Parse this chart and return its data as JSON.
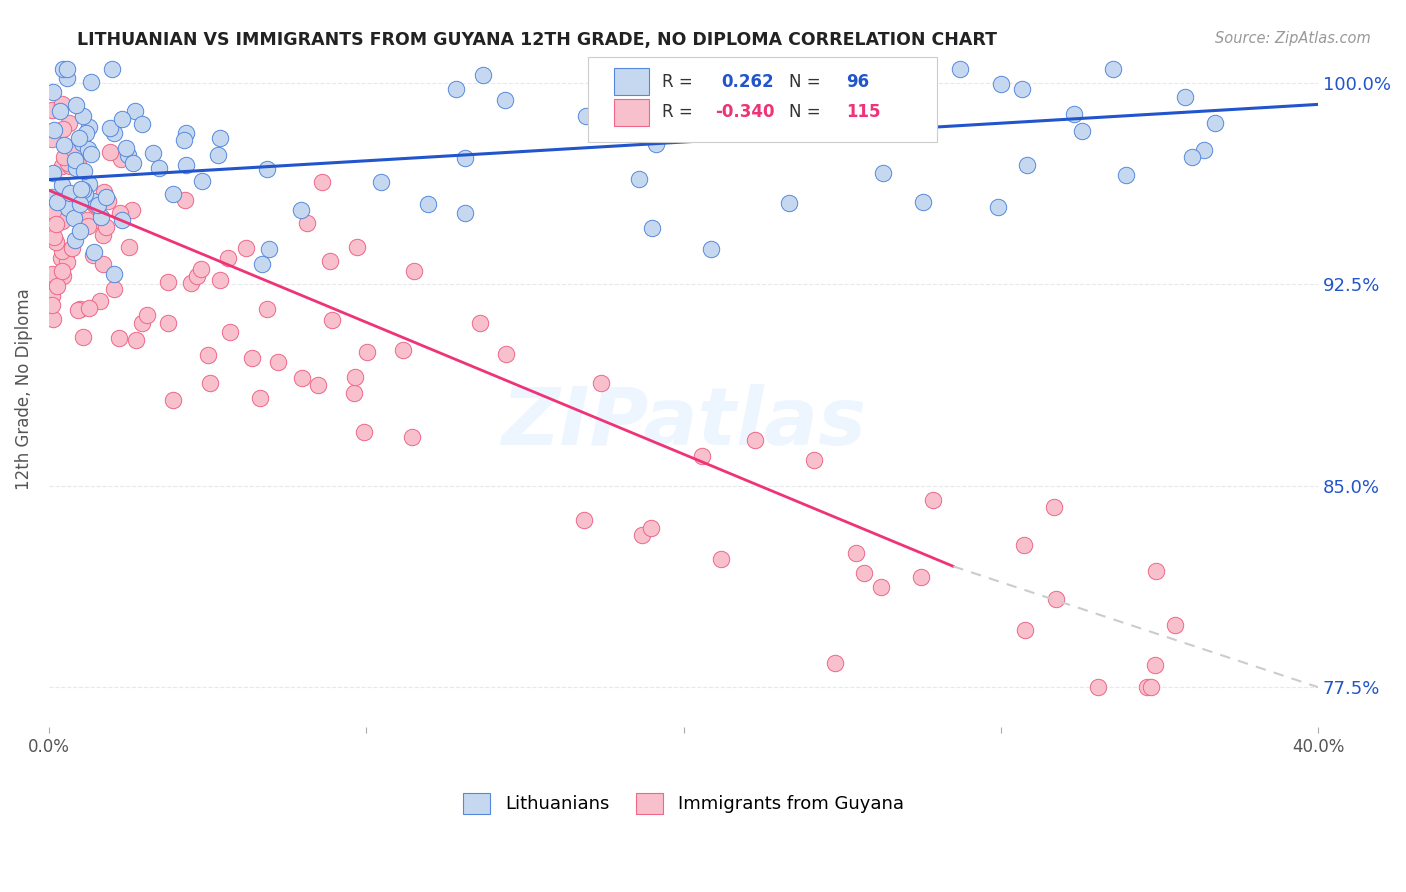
{
  "title": "LITHUANIAN VS IMMIGRANTS FROM GUYANA 12TH GRADE, NO DIPLOMA CORRELATION CHART",
  "source": "Source: ZipAtlas.com",
  "ylabel": "12th Grade, No Diploma",
  "y_ticks_vals": [
    0.775,
    0.85,
    0.925,
    1.0
  ],
  "y_ticks_labels": [
    "77.5%",
    "85.0%",
    "92.5%",
    "100.0%"
  ],
  "xlim": [
    0.0,
    0.4
  ],
  "ylim": [
    0.76,
    1.012
  ],
  "blue_line": [
    0.0,
    0.4,
    0.964,
    0.992
  ],
  "pink_line_solid": [
    0.0,
    0.285,
    0.96,
    0.82
  ],
  "pink_line_dash": [
    0.285,
    0.4,
    0.82,
    0.775
  ],
  "bg_color": "#ffffff",
  "grid_color": "#e8e8e8",
  "title_color": "#222222",
  "blue_color": "#2255cc",
  "pink_color": "#ee3377",
  "scatter_blue_face": "#c5d8f0",
  "scatter_blue_edge": "#5588dd",
  "scatter_pink_face": "#f8c0cc",
  "scatter_pink_edge": "#ee6688",
  "watermark": "ZIPatlas",
  "legend_R_blue": "0.262",
  "legend_N_blue": "96",
  "legend_R_pink": "-0.340",
  "legend_N_pink": "115",
  "legend_label_blue": "Lithuanians",
  "legend_label_pink": "Immigrants from Guyana"
}
